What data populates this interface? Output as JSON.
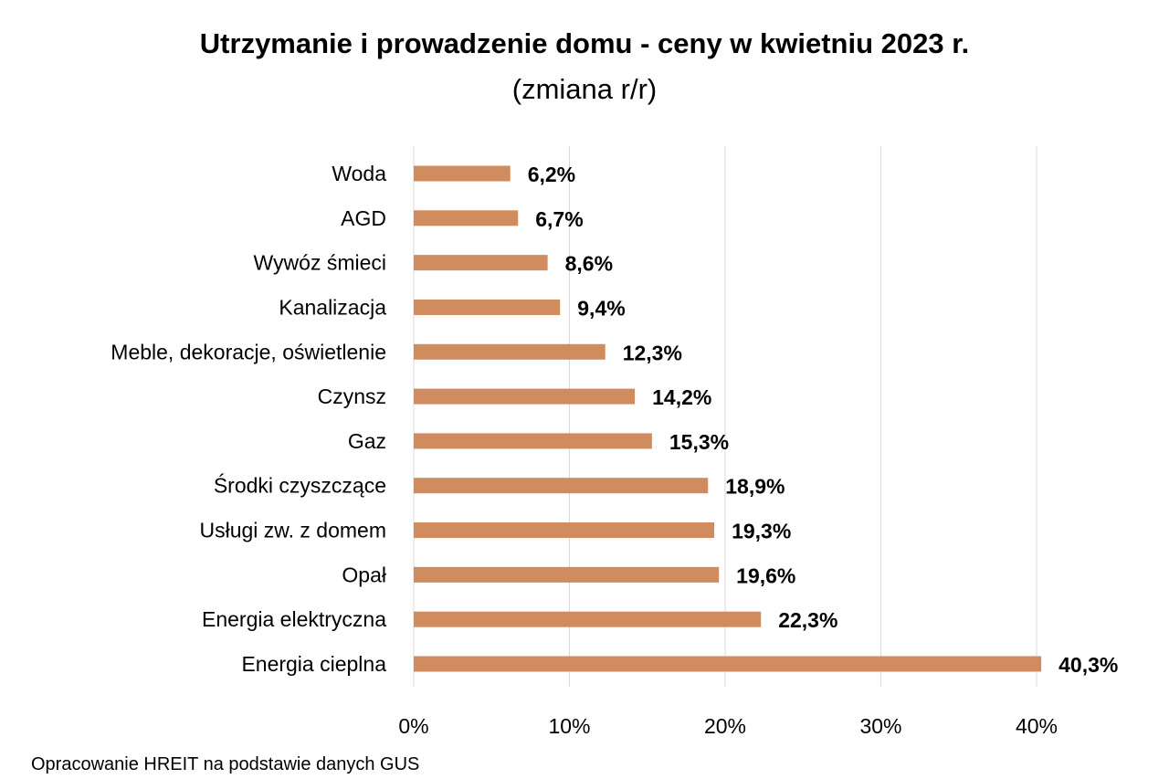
{
  "chart_data": {
    "type": "bar",
    "orientation": "horizontal",
    "title": "Utrzymanie i prowadzenie domu - ceny w kwietniu 2023 r.",
    "subtitle": "(zmiana r/r)",
    "categories": [
      "Woda",
      "AGD",
      "Wywóz śmieci",
      "Kanalizacja",
      "Meble, dekoracje, oświetlenie",
      "Czynsz",
      "Gaz",
      "Środki czyszczące",
      "Usługi zw. z domem",
      "Opał",
      "Energia elektryczna",
      "Energia cieplna"
    ],
    "values": [
      6.2,
      6.7,
      8.6,
      9.4,
      12.3,
      14.2,
      15.3,
      18.9,
      19.3,
      19.6,
      22.3,
      40.3
    ],
    "data_labels": [
      "6,2%",
      "6,7%",
      "8,6%",
      "9,4%",
      "12,3%",
      "14,2%",
      "15,3%",
      "18,9%",
      "19,3%",
      "19,6%",
      "22,3%",
      "40,3%"
    ],
    "xlim": [
      0,
      40
    ],
    "xticks": [
      "0%",
      "10%",
      "20%",
      "30%",
      "40%"
    ],
    "grid": "vertical",
    "bar_color": "#D08B5E",
    "source": "Opracowanie HREIT na podstawie danych GUS"
  }
}
